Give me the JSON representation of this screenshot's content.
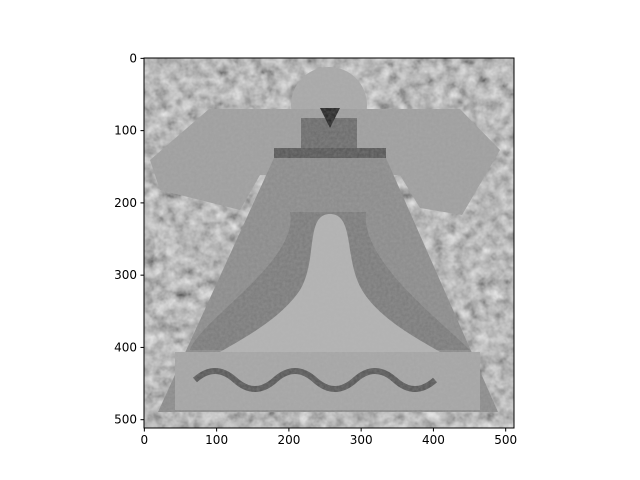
{
  "chart_data": {
    "type": "image",
    "xlim": [
      -0.5,
      511.5
    ],
    "ylim": [
      511.5,
      -0.5
    ],
    "xticks": [
      0,
      100,
      200,
      300,
      400,
      500
    ],
    "yticks": [
      0,
      100,
      200,
      300,
      400,
      500
    ]
  }
}
